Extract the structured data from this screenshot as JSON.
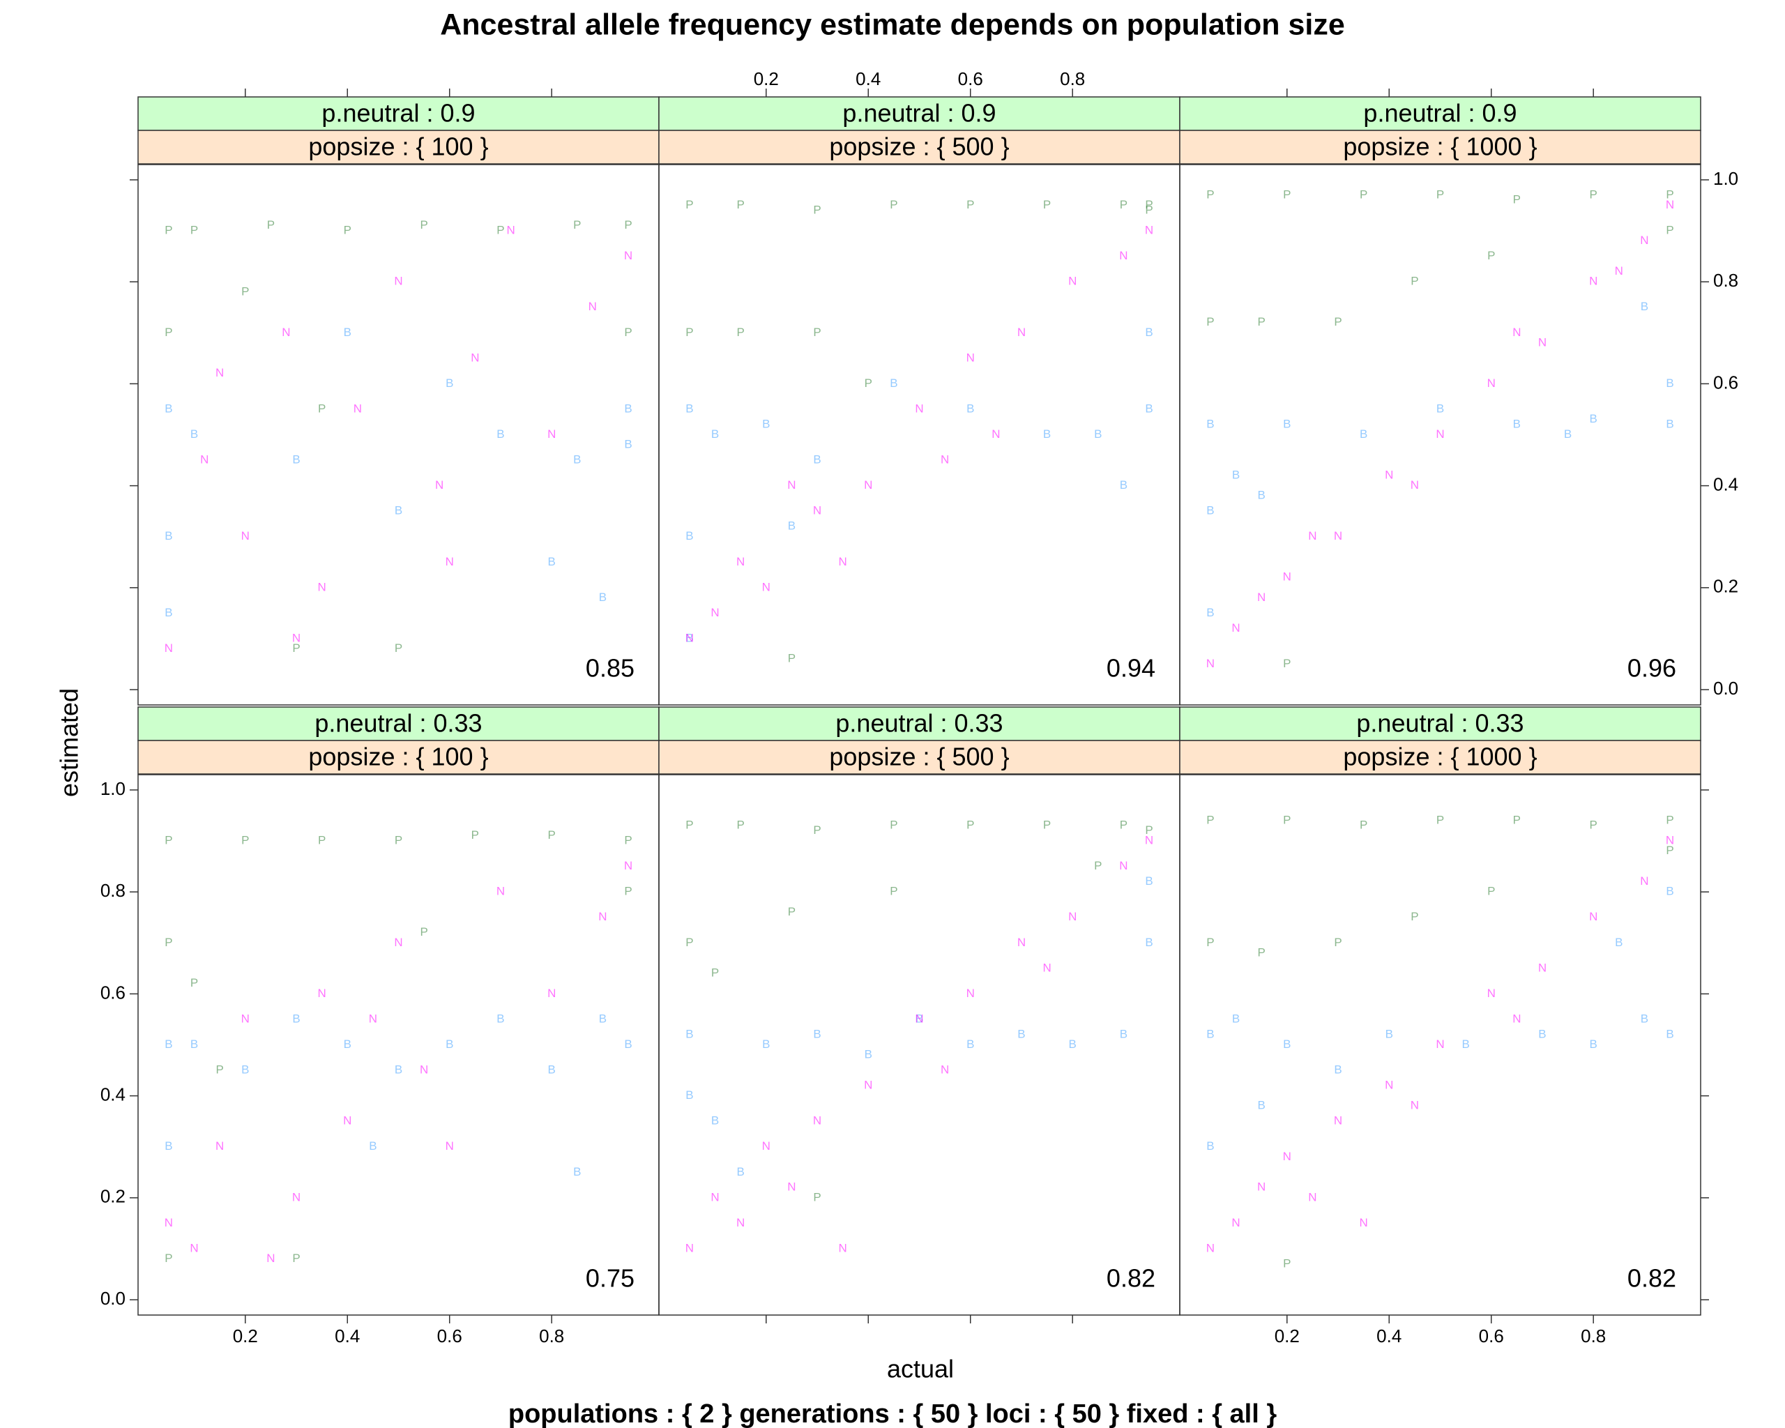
{
  "chart_data": {
    "type": "scatter",
    "title": "Ancestral allele frequency estimate depends on population size",
    "subtitle": "populations : { 2 } generations : { 50 } loci : { 50 } fixed : { all }",
    "xlabel": "actual",
    "ylabel": "estimated",
    "xlim": [
      -0.01,
      1.01
    ],
    "ylim": [
      -0.03,
      1.03
    ],
    "xticks": [
      0.2,
      0.4,
      0.6,
      0.8
    ],
    "yticks": [
      {
        "value": 0,
        "label": "0.0"
      },
      0.2,
      0.4,
      0.6,
      0.8,
      {
        "value": 1,
        "label": "1.0"
      }
    ],
    "strip_colors": [
      "#ccffcc",
      "#ffe5cc"
    ],
    "panels": [
      {
        "strips": [
          "p.neutral : 0.9",
          "popsize : { 100 }"
        ],
        "annotation": "0.85",
        "series": [
          {
            "name": "B",
            "color": "#3fa0ff",
            "x": [
              0.05,
              0.05,
              0.05,
              0.1,
              0.3,
              0.5,
              0.7,
              0.85,
              0.95,
              0.95,
              0.6,
              0.8,
              0.4,
              0.9
            ],
            "values": [
              0.55,
              0.3,
              0.15,
              0.5,
              0.45,
              0.35,
              0.5,
              0.45,
              0.55,
              0.48,
              0.6,
              0.25,
              0.7,
              0.18
            ]
          },
          {
            "name": "P",
            "color": "#2e7d32",
            "x": [
              0.05,
              0.1,
              0.25,
              0.4,
              0.55,
              0.7,
              0.85,
              0.95,
              0.05,
              0.3,
              0.5,
              0.95,
              0.2,
              0.35
            ],
            "values": [
              0.9,
              0.9,
              0.91,
              0.9,
              0.91,
              0.9,
              0.91,
              0.91,
              0.7,
              0.08,
              0.08,
              0.7,
              0.78,
              0.55
            ]
          },
          {
            "name": "N",
            "color": "#ff00ff",
            "x": [
              0.05,
              0.12,
              0.2,
              0.28,
              0.35,
              0.42,
              0.5,
              0.58,
              0.65,
              0.72,
              0.8,
              0.88,
              0.95,
              0.3,
              0.6,
              0.15
            ],
            "values": [
              0.08,
              0.45,
              0.3,
              0.7,
              0.2,
              0.55,
              0.8,
              0.4,
              0.65,
              0.9,
              0.5,
              0.75,
              0.85,
              0.1,
              0.25,
              0.62
            ]
          }
        ]
      },
      {
        "strips": [
          "p.neutral : 0.9",
          "popsize : { 500 }"
        ],
        "annotation": "0.94",
        "series": [
          {
            "name": "B",
            "color": "#3fa0ff",
            "x": [
              0.05,
              0.05,
              0.1,
              0.2,
              0.3,
              0.45,
              0.6,
              0.75,
              0.85,
              0.95,
              0.95,
              0.9,
              0.05,
              0.25
            ],
            "values": [
              0.55,
              0.3,
              0.5,
              0.52,
              0.45,
              0.6,
              0.55,
              0.5,
              0.5,
              0.55,
              0.7,
              0.4,
              0.1,
              0.32
            ]
          },
          {
            "name": "P",
            "color": "#2e7d32",
            "x": [
              0.05,
              0.15,
              0.3,
              0.45,
              0.6,
              0.75,
              0.9,
              0.95,
              0.05,
              0.15,
              0.3,
              0.4,
              0.25,
              0.95
            ],
            "values": [
              0.95,
              0.95,
              0.94,
              0.95,
              0.95,
              0.95,
              0.95,
              0.94,
              0.7,
              0.7,
              0.7,
              0.6,
              0.06,
              0.95
            ]
          },
          {
            "name": "N",
            "color": "#ff00ff",
            "x": [
              0.05,
              0.1,
              0.15,
              0.2,
              0.3,
              0.4,
              0.5,
              0.55,
              0.6,
              0.7,
              0.8,
              0.9,
              0.95,
              0.35,
              0.65,
              0.25
            ],
            "values": [
              0.1,
              0.15,
              0.25,
              0.2,
              0.35,
              0.4,
              0.55,
              0.45,
              0.65,
              0.7,
              0.8,
              0.85,
              0.9,
              0.25,
              0.5,
              0.4
            ]
          }
        ]
      },
      {
        "strips": [
          "p.neutral : 0.9",
          "popsize : { 1000 }"
        ],
        "annotation": "0.96",
        "series": [
          {
            "name": "B",
            "color": "#3fa0ff",
            "x": [
              0.05,
              0.05,
              0.1,
              0.2,
              0.35,
              0.5,
              0.65,
              0.8,
              0.95,
              0.95,
              0.05,
              0.15,
              0.9,
              0.75
            ],
            "values": [
              0.52,
              0.35,
              0.42,
              0.52,
              0.5,
              0.55,
              0.52,
              0.53,
              0.52,
              0.6,
              0.15,
              0.38,
              0.75,
              0.5
            ]
          },
          {
            "name": "P",
            "color": "#2e7d32",
            "x": [
              0.05,
              0.2,
              0.35,
              0.5,
              0.65,
              0.8,
              0.95,
              0.05,
              0.15,
              0.3,
              0.45,
              0.6,
              0.2,
              0.95
            ],
            "values": [
              0.97,
              0.97,
              0.97,
              0.97,
              0.96,
              0.97,
              0.97,
              0.72,
              0.72,
              0.72,
              0.8,
              0.85,
              0.05,
              0.9
            ]
          },
          {
            "name": "N",
            "color": "#ff00ff",
            "x": [
              0.05,
              0.1,
              0.15,
              0.2,
              0.3,
              0.4,
              0.5,
              0.6,
              0.7,
              0.8,
              0.9,
              0.95,
              0.25,
              0.45,
              0.65,
              0.85
            ],
            "values": [
              0.05,
              0.12,
              0.18,
              0.22,
              0.3,
              0.42,
              0.5,
              0.6,
              0.68,
              0.8,
              0.88,
              0.95,
              0.3,
              0.4,
              0.7,
              0.82
            ]
          }
        ]
      },
      {
        "strips": [
          "p.neutral : 0.33",
          "popsize : { 100 }"
        ],
        "annotation": "0.75",
        "series": [
          {
            "name": "B",
            "color": "#3fa0ff",
            "x": [
              0.05,
              0.05,
              0.1,
              0.2,
              0.3,
              0.4,
              0.5,
              0.6,
              0.7,
              0.8,
              0.9,
              0.95,
              0.85,
              0.45
            ],
            "values": [
              0.5,
              0.3,
              0.5,
              0.45,
              0.55,
              0.5,
              0.45,
              0.5,
              0.55,
              0.45,
              0.55,
              0.5,
              0.25,
              0.3
            ]
          },
          {
            "name": "P",
            "color": "#2e7d32",
            "x": [
              0.05,
              0.2,
              0.35,
              0.5,
              0.65,
              0.8,
              0.95,
              0.05,
              0.1,
              0.05,
              0.3,
              0.55,
              0.15,
              0.95
            ],
            "values": [
              0.9,
              0.9,
              0.9,
              0.9,
              0.91,
              0.91,
              0.9,
              0.7,
              0.62,
              0.08,
              0.08,
              0.72,
              0.45,
              0.8
            ]
          },
          {
            "name": "N",
            "color": "#ff00ff",
            "x": [
              0.05,
              0.1,
              0.15,
              0.2,
              0.3,
              0.35,
              0.4,
              0.5,
              0.55,
              0.6,
              0.7,
              0.8,
              0.9,
              0.95,
              0.25,
              0.45
            ],
            "values": [
              0.15,
              0.1,
              0.3,
              0.55,
              0.2,
              0.6,
              0.35,
              0.7,
              0.45,
              0.3,
              0.8,
              0.6,
              0.75,
              0.85,
              0.08,
              0.55
            ]
          }
        ]
      },
      {
        "strips": [
          "p.neutral : 0.33",
          "popsize : { 500 }"
        ],
        "annotation": "0.82",
        "series": [
          {
            "name": "B",
            "color": "#3fa0ff",
            "x": [
              0.05,
              0.05,
              0.1,
              0.2,
              0.3,
              0.4,
              0.5,
              0.6,
              0.7,
              0.8,
              0.9,
              0.95,
              0.95,
              0.15
            ],
            "values": [
              0.52,
              0.4,
              0.35,
              0.5,
              0.52,
              0.48,
              0.55,
              0.5,
              0.52,
              0.5,
              0.52,
              0.7,
              0.82,
              0.25
            ]
          },
          {
            "name": "P",
            "color": "#2e7d32",
            "x": [
              0.05,
              0.15,
              0.3,
              0.45,
              0.6,
              0.75,
              0.9,
              0.95,
              0.05,
              0.1,
              0.25,
              0.45,
              0.3,
              0.85
            ],
            "values": [
              0.93,
              0.93,
              0.92,
              0.93,
              0.93,
              0.93,
              0.93,
              0.92,
              0.7,
              0.64,
              0.76,
              0.8,
              0.2,
              0.85
            ]
          },
          {
            "name": "N",
            "color": "#ff00ff",
            "x": [
              0.05,
              0.1,
              0.15,
              0.2,
              0.3,
              0.4,
              0.5,
              0.6,
              0.7,
              0.8,
              0.9,
              0.95,
              0.25,
              0.55,
              0.35,
              0.75
            ],
            "values": [
              0.1,
              0.2,
              0.15,
              0.3,
              0.35,
              0.42,
              0.55,
              0.6,
              0.7,
              0.75,
              0.85,
              0.9,
              0.22,
              0.45,
              0.1,
              0.65
            ]
          }
        ]
      },
      {
        "strips": [
          "p.neutral : 0.33",
          "popsize : { 1000 }"
        ],
        "annotation": "0.82",
        "series": [
          {
            "name": "B",
            "color": "#3fa0ff",
            "x": [
              0.05,
              0.05,
              0.1,
              0.2,
              0.3,
              0.4,
              0.55,
              0.7,
              0.8,
              0.9,
              0.95,
              0.95,
              0.85,
              0.15
            ],
            "values": [
              0.52,
              0.3,
              0.55,
              0.5,
              0.45,
              0.52,
              0.5,
              0.52,
              0.5,
              0.55,
              0.52,
              0.8,
              0.7,
              0.38
            ]
          },
          {
            "name": "P",
            "color": "#2e7d32",
            "x": [
              0.05,
              0.2,
              0.35,
              0.5,
              0.65,
              0.8,
              0.95,
              0.05,
              0.15,
              0.3,
              0.45,
              0.6,
              0.2,
              0.95
            ],
            "values": [
              0.94,
              0.94,
              0.93,
              0.94,
              0.94,
              0.93,
              0.94,
              0.7,
              0.68,
              0.7,
              0.75,
              0.8,
              0.07,
              0.88
            ]
          },
          {
            "name": "N",
            "color": "#ff00ff",
            "x": [
              0.05,
              0.1,
              0.15,
              0.2,
              0.3,
              0.4,
              0.5,
              0.6,
              0.7,
              0.8,
              0.9,
              0.95,
              0.25,
              0.45,
              0.65,
              0.35
            ],
            "values": [
              0.1,
              0.15,
              0.22,
              0.28,
              0.35,
              0.42,
              0.5,
              0.6,
              0.65,
              0.75,
              0.82,
              0.9,
              0.2,
              0.38,
              0.55,
              0.15
            ]
          }
        ]
      }
    ]
  }
}
